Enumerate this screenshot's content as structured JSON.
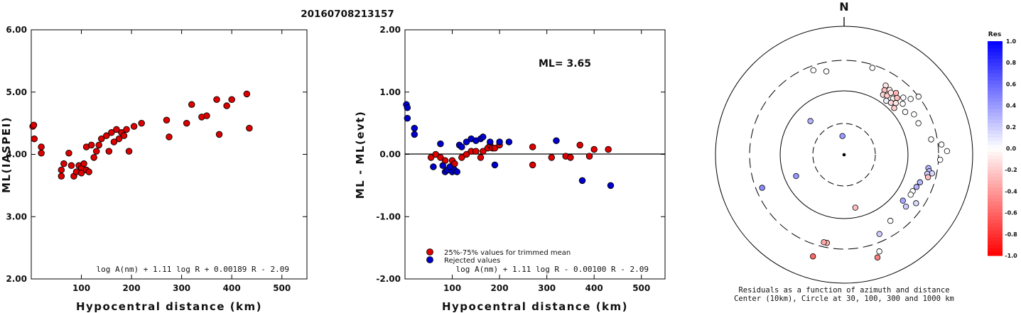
{
  "title": "20160708213157",
  "colors": {
    "accepted": "#dd0000",
    "rejected": "#0000cc",
    "axis": "#000000"
  },
  "chart_data": [
    {
      "type": "scatter",
      "xlabel": "Hypocentral distance (km)",
      "ylabel": "ML(IASPEI)",
      "xlim": [
        0,
        550
      ],
      "ylim": [
        2.0,
        6.0
      ],
      "xticks": [
        "100",
        "200",
        "300",
        "400",
        "500"
      ],
      "yticks": [
        "2.00",
        "3.00",
        "4.00",
        "5.00",
        "6.00"
      ],
      "equation": "log A(nm) + 1.11 log R + 0.00189 R - 2.09",
      "points": [
        [
          3,
          4.45
        ],
        [
          5,
          4.47
        ],
        [
          6,
          4.25
        ],
        [
          20,
          4.12
        ],
        [
          20,
          4.02
        ],
        [
          60,
          3.65
        ],
        [
          60,
          3.75
        ],
        [
          65,
          3.85
        ],
        [
          75,
          4.02
        ],
        [
          80,
          3.82
        ],
        [
          85,
          3.65
        ],
        [
          90,
          3.72
        ],
        [
          95,
          3.82
        ],
        [
          100,
          3.78
        ],
        [
          100,
          3.7
        ],
        [
          105,
          3.85
        ],
        [
          110,
          3.75
        ],
        [
          115,
          3.72
        ],
        [
          110,
          4.12
        ],
        [
          120,
          4.15
        ],
        [
          125,
          3.95
        ],
        [
          130,
          4.05
        ],
        [
          135,
          4.15
        ],
        [
          140,
          4.25
        ],
        [
          150,
          4.3
        ],
        [
          155,
          4.05
        ],
        [
          160,
          4.35
        ],
        [
          165,
          4.2
        ],
        [
          170,
          4.4
        ],
        [
          175,
          4.25
        ],
        [
          180,
          4.35
        ],
        [
          185,
          4.3
        ],
        [
          190,
          4.4
        ],
        [
          195,
          4.05
        ],
        [
          205,
          4.45
        ],
        [
          220,
          4.5
        ],
        [
          270,
          4.55
        ],
        [
          275,
          4.28
        ],
        [
          310,
          4.5
        ],
        [
          320,
          4.8
        ],
        [
          340,
          4.6
        ],
        [
          350,
          4.62
        ],
        [
          370,
          4.88
        ],
        [
          375,
          4.32
        ],
        [
          390,
          4.78
        ],
        [
          400,
          4.88
        ],
        [
          430,
          4.97
        ],
        [
          435,
          4.42
        ]
      ]
    },
    {
      "type": "scatter",
      "xlabel": "Hypocentral distance (km)",
      "ylabel": "ML - ML(evt)",
      "xlim": [
        0,
        550
      ],
      "ylim": [
        -2.0,
        2.0
      ],
      "xticks": [
        "100",
        "200",
        "300",
        "400",
        "500"
      ],
      "yticks": [
        "-2.00",
        "-1.00",
        "0.00",
        "1.00",
        "2.00"
      ],
      "annotation": "ML= 3.65",
      "legend": [
        {
          "label": "25%-75% values for trimmed mean",
          "color": "#dd0000"
        },
        {
          "label": "Rejected values",
          "color": "#0000cc"
        }
      ],
      "legend_position": "bottom",
      "equation": "log A(nm) + 1.11 log R - 0.00100 R - 2.09",
      "series": [
        {
          "name": "25%-75% values for trimmed mean",
          "points": [
            [
              55,
              -0.05
            ],
            [
              65,
              0.0
            ],
            [
              75,
              -0.05
            ],
            [
              85,
              -0.1
            ],
            [
              100,
              -0.1
            ],
            [
              105,
              -0.15
            ],
            [
              120,
              -0.05
            ],
            [
              130,
              0.0
            ],
            [
              140,
              0.05
            ],
            [
              150,
              0.05
            ],
            [
              160,
              -0.05
            ],
            [
              165,
              0.05
            ],
            [
              175,
              0.1
            ],
            [
              180,
              0.15
            ],
            [
              185,
              0.1
            ],
            [
              190,
              0.1
            ],
            [
              200,
              0.15
            ],
            [
              270,
              0.12
            ],
            [
              270,
              -0.17
            ],
            [
              310,
              -0.05
            ],
            [
              340,
              -0.03
            ],
            [
              350,
              -0.05
            ],
            [
              370,
              0.15
            ],
            [
              390,
              -0.03
            ],
            [
              400,
              0.08
            ],
            [
              430,
              0.08
            ]
          ]
        },
        {
          "name": "Rejected values",
          "points": [
            [
              3,
              0.8
            ],
            [
              5,
              0.75
            ],
            [
              5,
              0.58
            ],
            [
              20,
              0.42
            ],
            [
              20,
              0.32
            ],
            [
              60,
              -0.2
            ],
            [
              75,
              0.17
            ],
            [
              80,
              -0.18
            ],
            [
              85,
              -0.28
            ],
            [
              90,
              -0.25
            ],
            [
              95,
              -0.2
            ],
            [
              100,
              -0.28
            ],
            [
              105,
              -0.25
            ],
            [
              110,
              -0.28
            ],
            [
              115,
              0.15
            ],
            [
              120,
              0.12
            ],
            [
              130,
              0.2
            ],
            [
              140,
              0.25
            ],
            [
              150,
              0.22
            ],
            [
              160,
              0.25
            ],
            [
              165,
              0.28
            ],
            [
              180,
              0.2
            ],
            [
              190,
              -0.17
            ],
            [
              200,
              0.2
            ],
            [
              220,
              0.2
            ],
            [
              320,
              0.22
            ],
            [
              375,
              -0.42
            ],
            [
              435,
              -0.5
            ]
          ]
        }
      ]
    },
    {
      "type": "scatter",
      "subtype": "polar",
      "north_label": "N",
      "caption1": "Residuals as a function of azimuth and distance",
      "caption2": "Center (10km), Circle at 30, 100, 300 and 1000 km",
      "colorbar": {
        "label": "Res",
        "ticks": [
          "1.0",
          "0.8",
          "0.6",
          "0.4",
          "0.2",
          "0.0",
          "-0.2",
          "-0.4",
          "-0.6",
          "-0.8",
          "-1.0"
        ],
        "min": -1.0,
        "max": 1.0
      },
      "rings_km": [
        30,
        100,
        300,
        1000
      ],
      "points": [
        {
          "az": 52,
          "dist": 3.0,
          "res": 0.02
        },
        {
          "az": 315,
          "dist": 1.5,
          "res": 0.3
        },
        {
          "az": 355,
          "dist": 0.6,
          "res": 0.4
        },
        {
          "az": 348,
          "dist": 2.7,
          "res": 0.0
        },
        {
          "az": 340,
          "dist": 2.85,
          "res": 0.0
        },
        {
          "az": 18,
          "dist": 2.9,
          "res": 0.0
        },
        {
          "az": 31,
          "dist": 2.55,
          "res": -0.1
        },
        {
          "az": 32,
          "dist": 2.4,
          "res": -0.25
        },
        {
          "az": 33,
          "dist": 2.25,
          "res": -0.15
        },
        {
          "az": 35,
          "dist": 2.5,
          "res": -0.05
        },
        {
          "az": 36,
          "dist": 2.3,
          "res": -0.2
        },
        {
          "az": 37,
          "dist": 2.45,
          "res": -0.1
        },
        {
          "az": 38,
          "dist": 2.15,
          "res": 0.05
        },
        {
          "az": 40,
          "dist": 2.55,
          "res": -0.3
        },
        {
          "az": 41,
          "dist": 2.35,
          "res": -0.05
        },
        {
          "az": 42,
          "dist": 2.2,
          "res": -0.15
        },
        {
          "az": 43,
          "dist": 2.45,
          "res": -0.25
        },
        {
          "az": 45,
          "dist": 2.3,
          "res": -0.1
        },
        {
          "az": 46,
          "dist": 2.6,
          "res": 0.02
        },
        {
          "az": 47,
          "dist": 2.15,
          "res": -0.2
        },
        {
          "az": 49,
          "dist": 2.45,
          "res": 0.0
        },
        {
          "az": 50,
          "dist": 2.75,
          "res": 0.0
        },
        {
          "az": 55,
          "dist": 2.35,
          "res": 0.0
        },
        {
          "az": 60,
          "dist": 2.55,
          "res": 0.0
        },
        {
          "az": 67,
          "dist": 2.55,
          "res": 0.0
        },
        {
          "az": 80,
          "dist": 2.8,
          "res": 0.0
        },
        {
          "az": 84,
          "dist": 3.1,
          "res": 0.0
        },
        {
          "az": 88,
          "dist": 3.25,
          "res": 0.0
        },
        {
          "az": 93,
          "dist": 3.05,
          "res": 0.0
        },
        {
          "az": 99,
          "dist": 2.7,
          "res": 0.3
        },
        {
          "az": 101,
          "dist": 2.75,
          "res": 0.25
        },
        {
          "az": 102,
          "dist": 2.85,
          "res": 0.15
        },
        {
          "az": 103,
          "dist": 2.7,
          "res": 0.2
        },
        {
          "az": 105,
          "dist": 2.75,
          "res": -0.25
        },
        {
          "az": 110,
          "dist": 2.55,
          "res": 0.28
        },
        {
          "az": 114,
          "dist": 2.5,
          "res": 0.3
        },
        {
          "az": 118,
          "dist": 2.45,
          "res": 0.0
        },
        {
          "az": 121,
          "dist": 2.45,
          "res": 0.0
        },
        {
          "az": 124,
          "dist": 2.75,
          "res": 0.15
        },
        {
          "az": 128,
          "dist": 2.35,
          "res": 0.35
        },
        {
          "az": 130,
          "dist": 2.55,
          "res": 0.2
        },
        {
          "az": 145,
          "dist": 2.55,
          "res": 0.0
        },
        {
          "az": 156,
          "dist": 2.75,
          "res": 0.2
        },
        {
          "az": 160,
          "dist": 3.25,
          "res": 0.0
        },
        {
          "az": 162,
          "dist": 3.4,
          "res": -0.5
        },
        {
          "az": 168,
          "dist": 1.7,
          "res": -0.25
        },
        {
          "az": 191,
          "dist": 2.85,
          "res": -0.3
        },
        {
          "az": 193,
          "dist": 2.85,
          "res": -0.35
        },
        {
          "az": 197,
          "dist": 3.35,
          "res": -0.6
        },
        {
          "az": 246,
          "dist": 1.65,
          "res": 0.4
        },
        {
          "az": 248,
          "dist": 2.8,
          "res": 0.45
        }
      ]
    }
  ]
}
